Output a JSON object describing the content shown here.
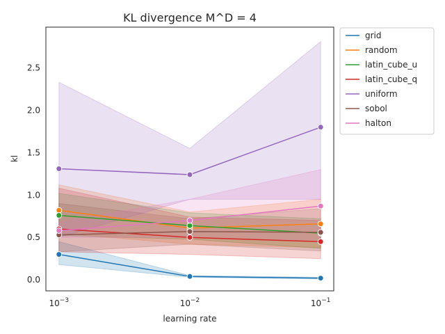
{
  "chart_data": {
    "type": "line",
    "title": "KL divergence M^D = 4",
    "xlabel": "learning rate",
    "ylabel": "kl",
    "x": [
      0.001,
      0.01,
      0.1
    ],
    "x_scale": "log",
    "x_tick_labels": [
      {
        "value": 0.001,
        "base": "10",
        "exp": "−3"
      },
      {
        "value": 0.01,
        "base": "10",
        "exp": "−2"
      },
      {
        "value": 0.1,
        "base": "10",
        "exp": "−1"
      }
    ],
    "y_ticks": [
      0.0,
      0.5,
      1.0,
      1.5,
      2.0,
      2.5
    ],
    "y_tick_labels": [
      "0.0",
      "0.5",
      "1.0",
      "1.5",
      "2.0",
      "2.5"
    ],
    "ylim": [
      -0.13,
      2.98
    ],
    "grid": false,
    "legend_position": "outside-top-right",
    "series": [
      {
        "name": "grid",
        "color": "#1f77b4",
        "values": [
          0.3,
          0.04,
          0.02
        ],
        "ci_low": [
          0.18,
          0.03,
          0.01
        ],
        "ci_high": [
          0.45,
          0.05,
          0.03
        ]
      },
      {
        "name": "random",
        "color": "#ff7f0e",
        "values": [
          0.82,
          0.61,
          0.66
        ],
        "ci_low": [
          0.55,
          0.42,
          0.38
        ],
        "ci_high": [
          1.12,
          0.8,
          0.95
        ]
      },
      {
        "name": "latin_cube_u",
        "color": "#2ca02c",
        "values": [
          0.76,
          0.64,
          0.55
        ],
        "ci_low": [
          0.52,
          0.48,
          0.37
        ],
        "ci_high": [
          1.02,
          0.79,
          0.72
        ]
      },
      {
        "name": "latin_cube_q",
        "color": "#d62728",
        "values": [
          0.6,
          0.5,
          0.45
        ],
        "ci_low": [
          0.33,
          0.3,
          0.25
        ],
        "ci_high": [
          1.08,
          0.74,
          0.7
        ]
      },
      {
        "name": "uniform",
        "color": "#9467bd",
        "values": [
          1.31,
          1.24,
          1.8
        ],
        "ci_low": [
          0.5,
          0.95,
          0.95
        ],
        "ci_high": [
          2.33,
          1.55,
          2.81
        ]
      },
      {
        "name": "sobol",
        "color": "#8c564b",
        "values": [
          0.53,
          0.57,
          0.56
        ],
        "ci_low": [
          0.33,
          0.42,
          0.34
        ],
        "ci_high": [
          0.9,
          0.72,
          0.84
        ]
      },
      {
        "name": "halton",
        "color": "#e377c2",
        "values": [
          0.58,
          0.7,
          0.87
        ],
        "ci_low": [
          0.5,
          0.5,
          0.45
        ],
        "ci_high": [
          0.68,
          0.95,
          1.3
        ]
      }
    ]
  }
}
